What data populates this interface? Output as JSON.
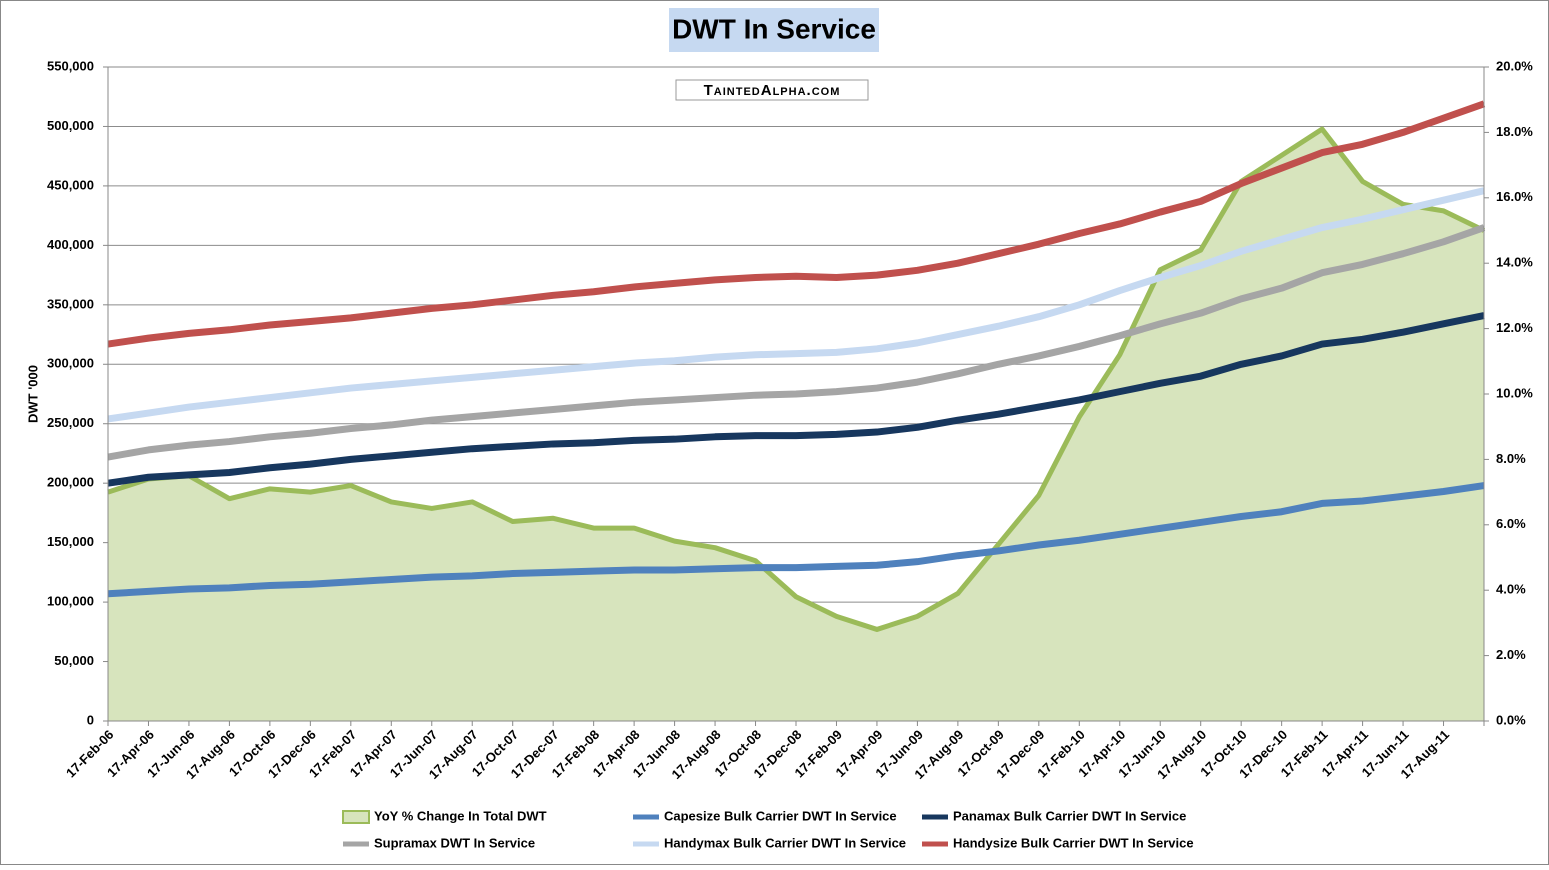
{
  "chart_data": {
    "type": "line",
    "title": "DWT In Service",
    "watermark": "TaintedAlpha.com",
    "y_label": "DWT '000",
    "x": [
      "17-Feb-06",
      "17-Apr-06",
      "17-Jun-06",
      "17-Aug-06",
      "17-Oct-06",
      "17-Dec-06",
      "17-Feb-07",
      "17-Apr-07",
      "17-Jun-07",
      "17-Aug-07",
      "17-Oct-07",
      "17-Dec-07",
      "17-Feb-08",
      "17-Apr-08",
      "17-Jun-08",
      "17-Aug-08",
      "17-Oct-08",
      "17-Dec-08",
      "17-Feb-09",
      "17-Apr-09",
      "17-Jun-09",
      "17-Aug-09",
      "17-Oct-09",
      "17-Dec-09",
      "17-Feb-10",
      "17-Apr-10",
      "17-Jun-10",
      "17-Aug-10",
      "17-Oct-10",
      "17-Dec-10",
      "17-Feb-11",
      "17-Apr-11",
      "17-Jun-11",
      "17-Aug-11",
      null
    ],
    "ylim": [
      0,
      550000
    ],
    "yticks": [
      {
        "value": 0,
        "label": "0"
      },
      {
        "value": 50000,
        "label": "50,000"
      },
      {
        "value": 100000,
        "label": "100,000"
      },
      {
        "value": 150000,
        "label": "150,000"
      },
      {
        "value": 200000,
        "label": "200,000"
      },
      {
        "value": 250000,
        "label": "250,000"
      },
      {
        "value": 300000,
        "label": "300,000"
      },
      {
        "value": 350000,
        "label": "350,000"
      },
      {
        "value": 400000,
        "label": "400,000"
      },
      {
        "value": 450000,
        "label": "450,000"
      },
      {
        "value": 500000,
        "label": "500,000"
      },
      {
        "value": 550000,
        "label": "550,000"
      }
    ],
    "y2lim": [
      0,
      20
    ],
    "y2ticks": [
      {
        "value": 0,
        "label": "0.0%"
      },
      {
        "value": 2,
        "label": "2.0%"
      },
      {
        "value": 4,
        "label": "4.0%"
      },
      {
        "value": 6,
        "label": "6.0%"
      },
      {
        "value": 8,
        "label": "8.0%"
      },
      {
        "value": 10,
        "label": "10.0%"
      },
      {
        "value": 12,
        "label": "12.0%"
      },
      {
        "value": 14,
        "label": "14.0%"
      },
      {
        "value": 16,
        "label": "16.0%"
      },
      {
        "value": 18,
        "label": "18.0%"
      },
      {
        "value": 20,
        "label": "20.0%"
      }
    ],
    "grid": true,
    "legend": "bottom",
    "series": [
      {
        "name": "YoY % Change In Total DWT",
        "type": "area",
        "axis": "y2",
        "color": "#9bbb59",
        "fill": "#d7e4bd",
        "values": [
          7.0,
          7.4,
          7.5,
          6.8,
          7.1,
          7.0,
          7.2,
          6.7,
          6.5,
          6.7,
          6.1,
          6.2,
          5.9,
          5.9,
          5.5,
          5.3,
          4.9,
          3.8,
          3.2,
          2.8,
          3.2,
          3.9,
          5.4,
          6.9,
          9.3,
          11.2,
          13.8,
          14.4,
          16.5,
          17.3,
          18.1,
          16.5,
          15.8,
          15.6,
          15.0
        ]
      },
      {
        "name": "Capesize Bulk Carrier DWT In Service",
        "color": "#4f81bd",
        "values": [
          107000,
          109000,
          111000,
          112000,
          114000,
          115000,
          117000,
          119000,
          121000,
          122000,
          124000,
          125000,
          126000,
          127000,
          127000,
          128000,
          129000,
          129000,
          130000,
          131000,
          134000,
          139000,
          143000,
          148000,
          152000,
          157000,
          162000,
          167000,
          172000,
          176000,
          183000,
          185000,
          189000,
          193000,
          198000
        ]
      },
      {
        "name": "Panamax Bulk Carrier DWT In Service",
        "color": "#17375e",
        "values": [
          200000,
          205000,
          207000,
          209000,
          213000,
          216000,
          220000,
          223000,
          226000,
          229000,
          231000,
          233000,
          234000,
          236000,
          237000,
          239000,
          240000,
          240000,
          241000,
          243000,
          247000,
          253000,
          258000,
          264000,
          270000,
          277000,
          284000,
          290000,
          300000,
          307000,
          317000,
          321000,
          327000,
          334000,
          341000
        ]
      },
      {
        "name": "Supramax DWT In Service",
        "color": "#a5a5a5",
        "values": [
          222000,
          228000,
          232000,
          235000,
          239000,
          242000,
          246000,
          249000,
          253000,
          256000,
          259000,
          262000,
          265000,
          268000,
          270000,
          272000,
          274000,
          275000,
          277000,
          280000,
          285000,
          292000,
          300000,
          307000,
          315000,
          324000,
          334000,
          343000,
          355000,
          364000,
          377000,
          384000,
          393000,
          403000,
          415000
        ]
      },
      {
        "name": "Handymax Bulk Carrier DWT In Service",
        "color": "#c6d9f1",
        "values": [
          254000,
          259000,
          264000,
          268000,
          272000,
          276000,
          280000,
          283000,
          286000,
          289000,
          292000,
          295000,
          298000,
          301000,
          303000,
          306000,
          308000,
          309000,
          310000,
          313000,
          318000,
          325000,
          332000,
          340000,
          350000,
          362000,
          373000,
          383000,
          395000,
          405000,
          415000,
          422000,
          430000,
          438000,
          446000
        ]
      },
      {
        "name": "Handysize Bulk Carrier DWT In Service",
        "color": "#c0504d",
        "values": [
          317000,
          322000,
          326000,
          329000,
          333000,
          336000,
          339000,
          343000,
          347000,
          350000,
          354000,
          358000,
          361000,
          365000,
          368000,
          371000,
          373000,
          374000,
          373000,
          375000,
          379000,
          385000,
          393000,
          401000,
          410000,
          418000,
          428000,
          437000,
          452000,
          465000,
          478000,
          485000,
          495000,
          507000,
          519000
        ]
      }
    ]
  }
}
